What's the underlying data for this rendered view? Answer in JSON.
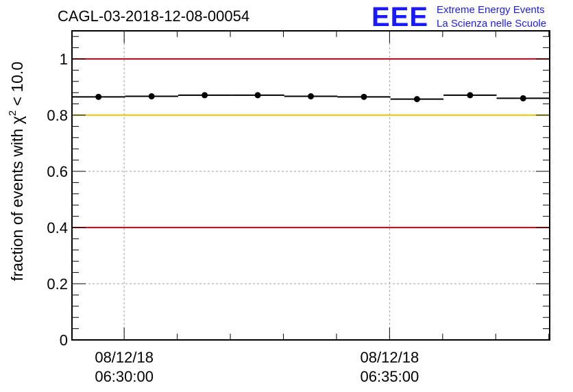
{
  "header": {
    "title": "CAGL-03-2018-12-08-00054",
    "logo_text": "EEE",
    "logo_line1": "Extreme Energy Events",
    "logo_line2": "La Scienza nelle Scuole"
  },
  "colors": {
    "red_line": "#e8000b",
    "yellow_line": "#ffc400",
    "logo_blue": "#1a1aff",
    "grid": "#a0a0a0"
  },
  "chart_data": {
    "type": "scatter",
    "title": "CAGL-03-2018-12-08-00054",
    "ylabel_prefix": "fraction of events with ",
    "ylabel_symbol": "χ",
    "ylabel_sup": "2",
    "ylabel_suffix": " < 10.0",
    "xlabel": "",
    "ylim": [
      0,
      1.1
    ],
    "yticks": [
      0,
      0.2,
      0.4,
      0.6,
      0.8,
      1
    ],
    "ytick_labels": [
      "0",
      "0.2",
      "0.4",
      "0.6",
      "0.8",
      "1"
    ],
    "xlim": [
      "06:29:01",
      "06:38:01"
    ],
    "xticks": [
      {
        "time": "06:30:00",
        "date_label": "08/12/18",
        "time_label": "06:30:00"
      },
      {
        "time": "06:35:00",
        "date_label": "08/12/18",
        "time_label": "06:35:00"
      }
    ],
    "grid": true,
    "reference_lines": [
      {
        "y": 1.0,
        "color": "red"
      },
      {
        "y": 0.8,
        "color": "yellow"
      },
      {
        "y": 0.4,
        "color": "red"
      }
    ],
    "series": [
      {
        "x": [
          "06:29:31",
          "06:30:31",
          "06:31:31",
          "06:32:31",
          "06:33:31",
          "06:34:31",
          "06:35:31",
          "06:36:31",
          "06:37:31"
        ],
        "y": [
          0.865,
          0.867,
          0.871,
          0.871,
          0.867,
          0.865,
          0.857,
          0.871,
          0.86
        ],
        "x_half_width_seconds": 30
      }
    ]
  }
}
